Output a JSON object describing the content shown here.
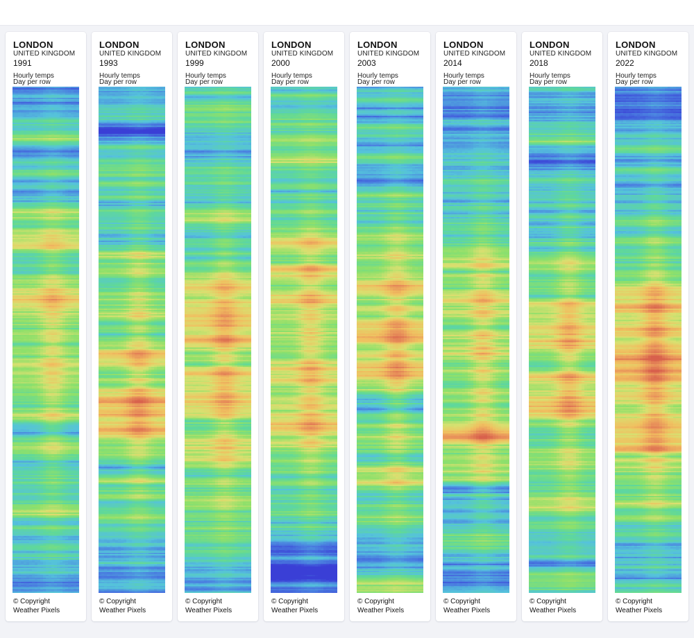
{
  "cards": [
    {
      "city": "LONDON",
      "country": "UNITED KINGDOM",
      "year": "1991",
      "desc_line1": "Hourly temps",
      "desc_line2": "Day per row",
      "copyright_line1": "© Copyright",
      "copyright_line2": "Weather Pixels"
    },
    {
      "city": "LONDON",
      "country": "UNITED KINGDOM",
      "year": "1993",
      "desc_line1": "Hourly temps",
      "desc_line2": "Day per row",
      "copyright_line1": "© Copyright",
      "copyright_line2": "Weather Pixels"
    },
    {
      "city": "LONDON",
      "country": "UNITED KINGDOM",
      "year": "1999",
      "desc_line1": "Hourly temps",
      "desc_line2": "Day per row",
      "copyright_line1": "© Copyright",
      "copyright_line2": "Weather Pixels"
    },
    {
      "city": "LONDON",
      "country": "UNITED KINGDOM",
      "year": "2000",
      "desc_line1": "Hourly temps",
      "desc_line2": "Day per row",
      "copyright_line1": "© Copyright",
      "copyright_line2": "Weather Pixels"
    },
    {
      "city": "LONDON",
      "country": "UNITED KINGDOM",
      "year": "2003",
      "desc_line1": "Hourly temps",
      "desc_line2": "Day per row",
      "copyright_line1": "© Copyright",
      "copyright_line2": "Weather Pixels"
    },
    {
      "city": "LONDON",
      "country": "UNITED KINGDOM",
      "year": "2014",
      "desc_line1": "Hourly temps",
      "desc_line2": "Day per row",
      "copyright_line1": "© Copyright",
      "copyright_line2": "Weather Pixels"
    },
    {
      "city": "LONDON",
      "country": "UNITED KINGDOM",
      "year": "2018",
      "desc_line1": "Hourly temps",
      "desc_line2": "Day per row",
      "copyright_line1": "© Copyright",
      "copyright_line2": "Weather Pixels"
    },
    {
      "city": "LONDON",
      "country": "UNITED KINGDOM",
      "year": "2022",
      "desc_line1": "Hourly temps",
      "desc_line2": "Day per row",
      "copyright_line1": "© Copyright",
      "copyright_line2": "Weather Pixels"
    }
  ],
  "heatmap_palette": [
    "#3a3fd6",
    "#4a7fe0",
    "#55c2dc",
    "#5fd89a",
    "#8fe06a",
    "#d8e070",
    "#f0c060",
    "#e8905a",
    "#d8604c"
  ]
}
